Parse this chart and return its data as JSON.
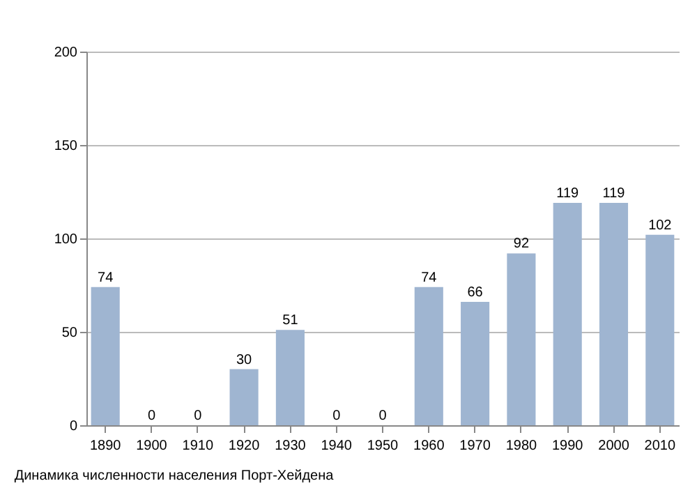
{
  "chart_data": {
    "type": "bar",
    "categories": [
      "1890",
      "1900",
      "1910",
      "1920",
      "1930",
      "1940",
      "1950",
      "1960",
      "1970",
      "1980",
      "1990",
      "2000",
      "2010"
    ],
    "values": [
      74,
      0,
      0,
      30,
      51,
      0,
      0,
      74,
      66,
      92,
      119,
      119,
      102
    ],
    "color": "#9fb5d1",
    "ylim": [
      0,
      200
    ],
    "yticks": [
      0,
      50,
      100,
      150,
      200
    ],
    "grid": "y",
    "data_labels": true,
    "annotations": [
      "Динамика численности населения Порт-Хейдена"
    ]
  }
}
